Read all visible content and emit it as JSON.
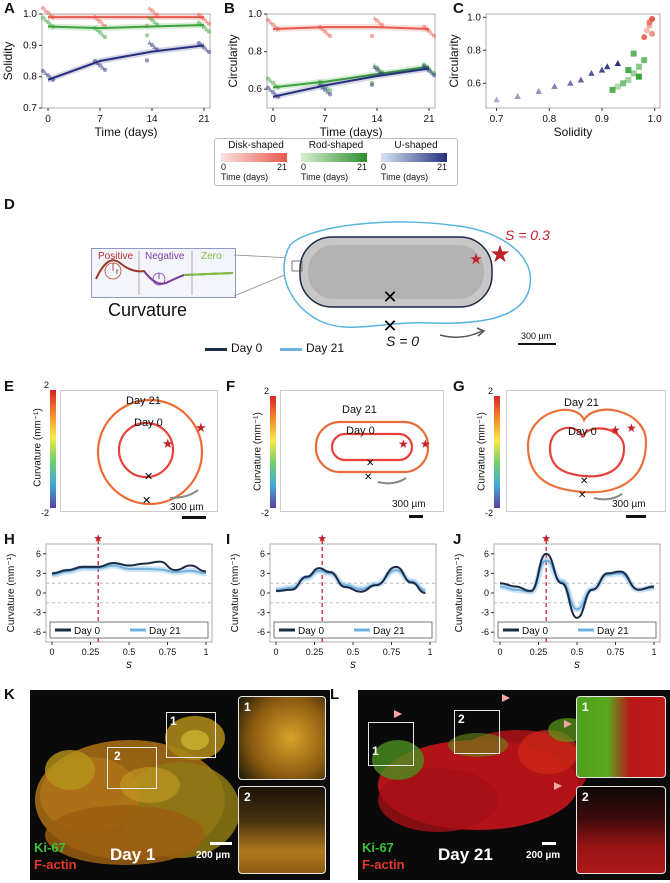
{
  "panel_labels": {
    "A": "A",
    "B": "B",
    "C": "C",
    "D": "D",
    "E": "E",
    "F": "F",
    "G": "G",
    "H": "H",
    "I": "I",
    "J": "J",
    "K": "K",
    "L": "L"
  },
  "colors": {
    "disk": "#e8594c",
    "rod": "#3aa33a",
    "u": "#27307e",
    "star": "#c0212a",
    "day0": "#1b2a45",
    "day21": "#6fb0df"
  },
  "legend_top": {
    "items": [
      {
        "title": "Disk-shaped",
        "min": "0",
        "max": "21",
        "unit": "Time (days)"
      },
      {
        "title": "Rod-shaped",
        "min": "0",
        "max": "21",
        "unit": "Time (days)"
      },
      {
        "title": "U-shaped",
        "min": "0",
        "max": "21",
        "unit": "Time (days)"
      }
    ]
  },
  "panelD": {
    "curv_positive": "Positive",
    "curv_negative": "Negative",
    "curv_zero": "Zero",
    "curvature_title": "Curvature",
    "r_symbol": "r",
    "s_star": "S = 0.3",
    "s_zero": "S = 0",
    "legend_day0": "Day 0",
    "legend_day21": "Day 21",
    "scale": "300 µm"
  },
  "panelEFG": {
    "cbar_label": "Curvature (mm⁻¹)",
    "cbar_max": "2",
    "cbar_min": "-2",
    "day21": "Day 21",
    "day0": "Day 0",
    "scale": "300 µm"
  },
  "panelHIJ": {
    "ylabel": "Curvature (mm⁻¹)",
    "xlabel": "s",
    "legend_day0": "Day 0",
    "legend_day21": "Day 21"
  },
  "panelK": {
    "ki67": "Ki-67",
    "factin": "F-actin",
    "day": "Day 1",
    "scale": "200 µm",
    "roi1": "1",
    "roi2": "2"
  },
  "panelL": {
    "ki67": "Ki-67",
    "factin": "F-actin",
    "day": "Day 21",
    "scale": "200 µm",
    "roi1": "1",
    "roi2": "2"
  },
  "chart_data": [
    {
      "type": "line",
      "id": "A",
      "title": "",
      "xlabel": "Time (days)",
      "ylabel": "Solidity",
      "x": [
        0,
        7,
        14,
        21
      ],
      "ylim": [
        0.7,
        1.0
      ],
      "yticks": [
        "0.7",
        "0.8",
        "0.9",
        "1.0"
      ],
      "xticks": [
        "0",
        "7",
        "14",
        "21"
      ],
      "series": [
        {
          "name": "Disk-shaped",
          "values": [
            0.99,
            0.99,
            0.99,
            0.99
          ]
        },
        {
          "name": "Rod-shaped",
          "values": [
            0.96,
            0.955,
            0.96,
            0.965
          ]
        },
        {
          "name": "U-shaped",
          "values": [
            0.79,
            0.85,
            0.88,
            0.9
          ]
        }
      ]
    },
    {
      "type": "line",
      "id": "B",
      "title": "",
      "xlabel": "Time (days)",
      "ylabel": "Circularity",
      "x": [
        0,
        7,
        14,
        21
      ],
      "ylim": [
        0.5,
        1.0
      ],
      "yticks": [
        "0.6",
        "0.8",
        "1.0"
      ],
      "xticks": [
        "0",
        "7",
        "14",
        "21"
      ],
      "series": [
        {
          "name": "Disk-shaped",
          "values": [
            0.92,
            0.93,
            0.93,
            0.92
          ]
        },
        {
          "name": "Rod-shaped",
          "values": [
            0.61,
            0.64,
            0.68,
            0.72
          ]
        },
        {
          "name": "U-shaped",
          "values": [
            0.56,
            0.62,
            0.67,
            0.71
          ]
        }
      ]
    },
    {
      "type": "scatter",
      "id": "C",
      "title": "",
      "xlabel": "Solidity",
      "ylabel": "Circularity",
      "xlim": [
        0.68,
        1.01
      ],
      "ylim": [
        0.45,
        1.02
      ],
      "xticks": [
        "0.7",
        "0.8",
        "0.9",
        "1.0"
      ],
      "yticks": [
        "0.6",
        "0.8",
        "1.0"
      ],
      "series": [
        {
          "name": "Disk-shaped",
          "x": [
            0.985,
            0.99,
            0.995,
            0.99,
            0.98,
            0.995
          ],
          "y": [
            0.92,
            0.95,
            0.9,
            0.97,
            0.88,
            0.99
          ]
        },
        {
          "name": "Rod-shaped",
          "x": [
            0.93,
            0.95,
            0.96,
            0.97,
            0.94,
            0.98,
            0.96,
            0.92,
            0.95,
            0.97
          ],
          "y": [
            0.58,
            0.62,
            0.66,
            0.7,
            0.6,
            0.74,
            0.78,
            0.56,
            0.68,
            0.64
          ]
        },
        {
          "name": "U-shaped",
          "x": [
            0.7,
            0.74,
            0.78,
            0.81,
            0.84,
            0.86,
            0.88,
            0.9,
            0.91,
            0.93
          ],
          "y": [
            0.5,
            0.52,
            0.55,
            0.58,
            0.6,
            0.62,
            0.66,
            0.68,
            0.7,
            0.72
          ]
        }
      ]
    },
    {
      "type": "line",
      "id": "H",
      "xlabel": "s",
      "ylabel": "Curvature (mm⁻¹)",
      "xticks": [
        "0",
        "0.25",
        "0.5",
        "0.75",
        "1"
      ],
      "yticks": [
        "6",
        "3",
        "0",
        "-3",
        "-6"
      ],
      "marker_s": 0.3,
      "series": [
        {
          "name": "Day 0",
          "x": [
            0,
            0.1,
            0.2,
            0.3,
            0.4,
            0.5,
            0.6,
            0.7,
            0.8,
            0.9,
            1
          ],
          "values": [
            3,
            3.5,
            4,
            4,
            4.6,
            4.2,
            4.5,
            4.8,
            3.5,
            4.2,
            3.3
          ]
        },
        {
          "name": "Day 21",
          "x": [
            0,
            0.1,
            0.2,
            0.3,
            0.4,
            0.5,
            0.6,
            0.7,
            0.8,
            0.9,
            1
          ],
          "values": [
            2.8,
            3.3,
            3.8,
            3.8,
            4.2,
            3.7,
            3.7,
            3.6,
            3.2,
            3.4,
            3.0
          ]
        }
      ]
    },
    {
      "type": "line",
      "id": "I",
      "xlabel": "s",
      "ylabel": "Curvature (mm⁻¹)",
      "xticks": [
        "0",
        "0.25",
        "0.5",
        "0.75",
        "1"
      ],
      "yticks": [
        "6",
        "3",
        "0",
        "-3",
        "-6"
      ],
      "marker_s": 0.3,
      "series": [
        {
          "name": "Day 0",
          "x": [
            0,
            0.1,
            0.2,
            0.28,
            0.35,
            0.45,
            0.55,
            0.65,
            0.78,
            0.88,
            0.97
          ],
          "values": [
            0.3,
            0.5,
            2.5,
            3.8,
            3.2,
            0.9,
            0.2,
            1.2,
            4.0,
            1.6,
            0.0
          ]
        },
        {
          "name": "Day 21",
          "x": [
            0,
            0.1,
            0.2,
            0.28,
            0.35,
            0.45,
            0.55,
            0.65,
            0.78,
            0.88,
            0.97
          ],
          "values": [
            0.5,
            0.8,
            2.3,
            3.4,
            3.0,
            1.2,
            0.6,
            1.3,
            3.5,
            1.8,
            0.4
          ]
        }
      ]
    },
    {
      "type": "line",
      "id": "J",
      "xlabel": "s",
      "ylabel": "Curvature (mm⁻¹)",
      "xticks": [
        "0",
        "0.25",
        "0.5",
        "0.75",
        "1"
      ],
      "yticks": [
        "6",
        "3",
        "0",
        "-3",
        "-6"
      ],
      "marker_s": 0.3,
      "series": [
        {
          "name": "Day 0",
          "x": [
            0,
            0.1,
            0.2,
            0.3,
            0.4,
            0.5,
            0.6,
            0.7,
            0.78,
            0.9,
            1
          ],
          "values": [
            1.5,
            1.0,
            0.3,
            6.0,
            1.5,
            -3.8,
            0.5,
            3.0,
            3.3,
            0.5,
            1.0
          ]
        },
        {
          "name": "Day 21",
          "x": [
            0,
            0.1,
            0.2,
            0.3,
            0.4,
            0.5,
            0.6,
            0.7,
            0.78,
            0.9,
            1
          ],
          "values": [
            1.0,
            0.5,
            0.2,
            5.0,
            1.8,
            -2.5,
            0.6,
            2.8,
            3.0,
            0.5,
            0.8
          ]
        }
      ]
    }
  ]
}
